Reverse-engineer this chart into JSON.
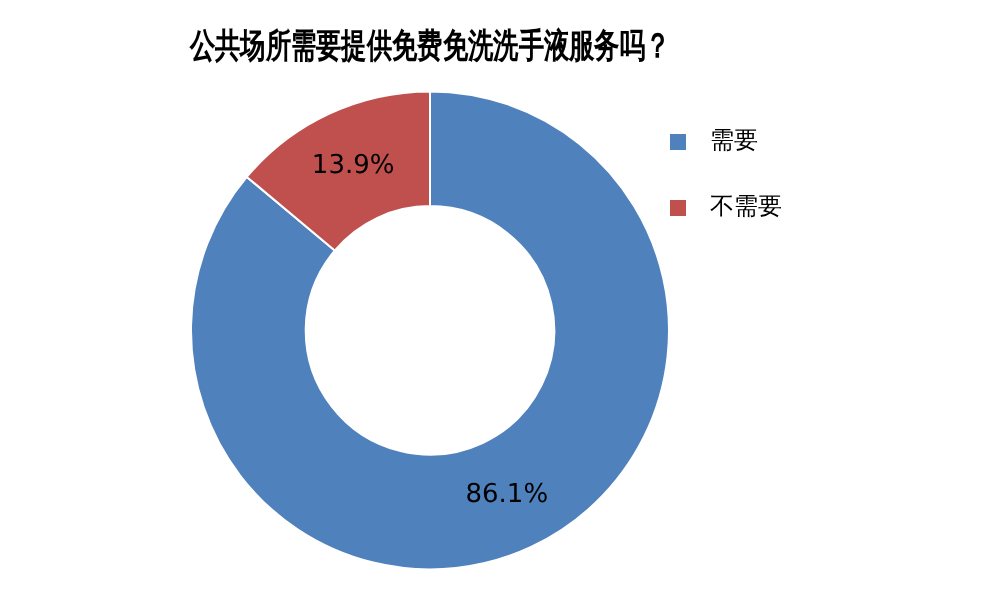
{
  "chart_data": {
    "type": "donut",
    "title": "公共场所需要提供免费免洗洗手液服务吗？",
    "categories": [
      "需要",
      "不需要"
    ],
    "values": [
      86.1,
      13.9
    ],
    "colors": [
      "#4f81bd",
      "#c0504d"
    ],
    "value_labels": [
      "86.1%",
      "13.9%"
    ],
    "legend": "right"
  }
}
